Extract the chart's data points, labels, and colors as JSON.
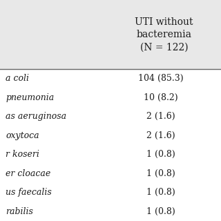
{
  "header_col2": "UTI without\nbacteremia\n(N = 122)",
  "rows": [
    [
      "a coli",
      "104 (85.3)"
    ],
    [
      "pneumonia",
      "10 (8.2)"
    ],
    [
      "as aeruginosa",
      "2 (1.6)"
    ],
    [
      "oxytoca",
      "2 (1.6)"
    ],
    [
      "r koseri",
      "1 (0.8)"
    ],
    [
      "er cloacae",
      "1 (0.8)"
    ],
    [
      "us faecalis",
      "1 (0.8)"
    ],
    [
      "rabilis",
      "1 (0.8)"
    ]
  ],
  "col1_prefix": [
    "• ",
    "•",
    "",
    "•",
    "r",
    "er",
    "us",
    ""
  ],
  "background_header": "#e8e8e8",
  "background_body": "#ffffff",
  "line_color": "#666666",
  "text_color": "#1a1a1a",
  "font_size": 9.0,
  "header_font_size": 10.0,
  "fig_width": 3.2,
  "fig_height": 3.2,
  "dpi": 100
}
